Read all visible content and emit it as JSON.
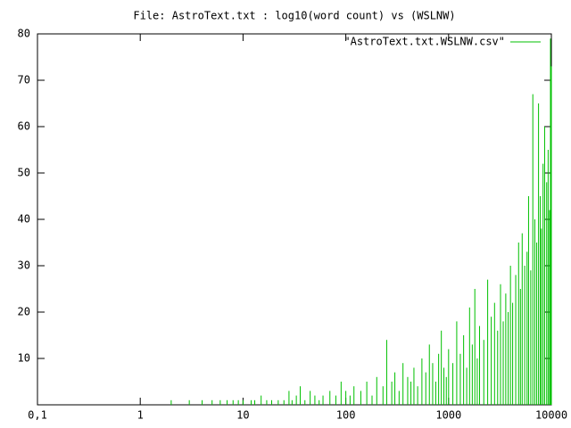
{
  "chart_data": {
    "type": "impulse",
    "title": "File: AstroText.txt : log10(word count) vs (WSLNW)",
    "logx": true,
    "xlim": [
      0.1,
      10000
    ],
    "xticks": [
      {
        "value": 0.1,
        "label": "0,1"
      },
      1,
      10,
      100,
      1000,
      10000
    ],
    "ylim": [
      0,
      80
    ],
    "yticks": [
      10,
      20,
      30,
      40,
      50,
      60,
      70,
      80
    ],
    "legend": "top-right",
    "series": [
      {
        "name": "\"AstroText.txt.WSLNW.csv\"",
        "color": "#00c000",
        "x": [
          2,
          3,
          4,
          5,
          6,
          7,
          8,
          9,
          10,
          12,
          13,
          15,
          17,
          19,
          22,
          25,
          28,
          30,
          33,
          36,
          40,
          45,
          50,
          55,
          60,
          70,
          80,
          90,
          100,
          110,
          120,
          140,
          160,
          180,
          200,
          230,
          250,
          280,
          300,
          330,
          360,
          400,
          430,
          460,
          500,
          550,
          600,
          650,
          700,
          750,
          800,
          850,
          900,
          950,
          1000,
          1100,
          1200,
          1300,
          1400,
          1500,
          1600,
          1700,
          1800,
          1900,
          2000,
          2200,
          2400,
          2600,
          2800,
          3000,
          3200,
          3400,
          3600,
          3800,
          4000,
          4200,
          4500,
          4800,
          5000,
          5200,
          5500,
          5800,
          6000,
          6300,
          6600,
          6900,
          7200,
          7500,
          7800,
          8000,
          8300,
          8600,
          9000,
          9300,
          9600,
          9800,
          10000
        ],
        "values": [
          1,
          1,
          1,
          1,
          1,
          1,
          1,
          1,
          1,
          1,
          1,
          2,
          1,
          1,
          1,
          1,
          3,
          1,
          2,
          4,
          1,
          3,
          2,
          1,
          2,
          3,
          2,
          5,
          3,
          2,
          4,
          3,
          5,
          2,
          6,
          4,
          14,
          5,
          7,
          3,
          9,
          6,
          5,
          8,
          4,
          10,
          7,
          13,
          9,
          5,
          11,
          16,
          8,
          6,
          12,
          9,
          18,
          11,
          15,
          8,
          21,
          13,
          25,
          10,
          17,
          14,
          27,
          19,
          22,
          16,
          26,
          18,
          24,
          20,
          30,
          22,
          28,
          35,
          25,
          37,
          30,
          33,
          45,
          29,
          67,
          40,
          35,
          65,
          45,
          38,
          52,
          60,
          48,
          55,
          42,
          79,
          73
        ]
      }
    ]
  }
}
